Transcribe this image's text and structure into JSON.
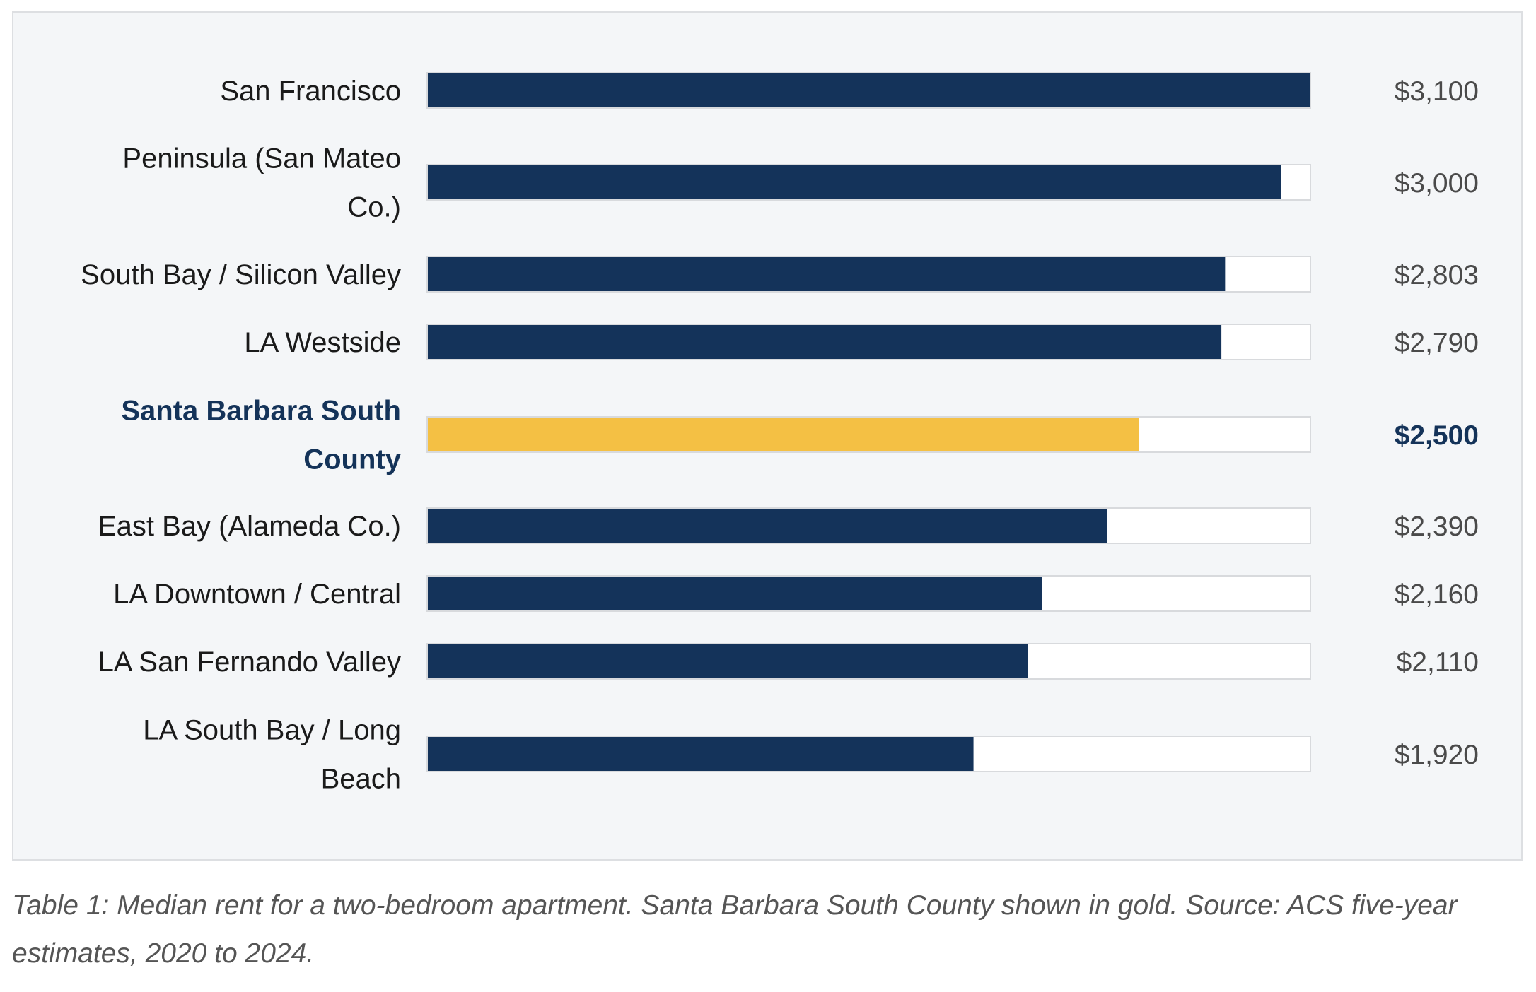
{
  "chart_data": {
    "type": "bar",
    "orientation": "horizontal",
    "categories": [
      "San Francisco",
      "Peninsula (San Mateo Co.)",
      "South Bay / Silicon Valley",
      "LA Westside",
      "Santa Barbara South County",
      "East Bay (Alameda Co.)",
      "LA Downtown / Central",
      "LA San Fernando Valley",
      "LA South Bay / Long Beach"
    ],
    "values": [
      3100,
      3000,
      2803,
      2790,
      2500,
      2390,
      2160,
      2110,
      1920
    ],
    "value_labels": [
      "$3,100",
      "$3,000",
      "$2,803",
      "$2,790",
      "$2,500",
      "$2,390",
      "$2,160",
      "$2,110",
      "$1,920"
    ],
    "highlight_index": 4,
    "xlim": [
      0,
      3100
    ],
    "grid": false,
    "legend": "none",
    "colors": {
      "bar": "#14335a",
      "highlight_bar": "#f4c044",
      "track": "#ffffff",
      "track_border": "#d8dadd",
      "panel_background": "#f4f6f8"
    }
  },
  "caption": "Table 1: Median rent for a two-bedroom apartment. Santa Barbara South County shown in gold. Source: ACS five-year estimates, 2020 to 2024."
}
